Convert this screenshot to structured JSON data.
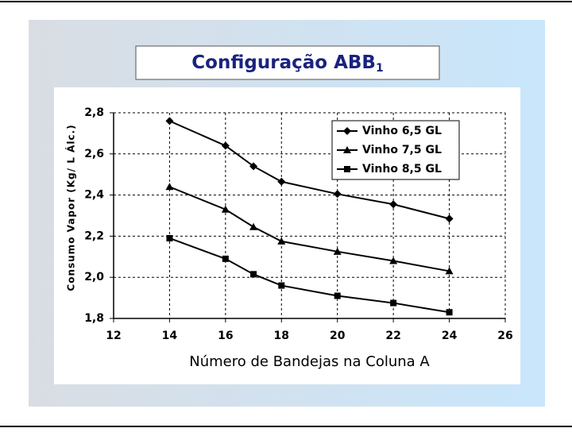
{
  "chart_data": {
    "type": "line",
    "title": "Configuração ABB",
    "title_subscript": "1",
    "x_label": "Número de Bandejas na Coluna A",
    "y_label": "Consumo Vapor (Kg/ L Álc.)",
    "x": [
      14,
      16,
      17,
      18,
      20,
      22,
      24
    ],
    "series": [
      {
        "name": "Vinho 6,5 GL",
        "color": "#000000",
        "marker": "diamond",
        "values": [
          2.76,
          2.64,
          2.54,
          2.465,
          2.405,
          2.355,
          2.285
        ]
      },
      {
        "name": "Vinho 7,5 GL",
        "color": "#000000",
        "marker": "triangle",
        "values": [
          2.44,
          2.33,
          2.245,
          2.175,
          2.125,
          2.08,
          2.03
        ]
      },
      {
        "name": "Vinho 8,5 GL",
        "color": "#000000",
        "marker": "square",
        "values": [
          2.19,
          2.09,
          2.015,
          1.96,
          1.91,
          1.875,
          1.83
        ]
      }
    ],
    "xlim": [
      12,
      26
    ],
    "xticks": [
      12,
      14,
      16,
      18,
      20,
      22,
      24,
      26
    ],
    "ylim": [
      1.8,
      2.8
    ],
    "yticks": [
      {
        "value": 1.8,
        "label": "1,8"
      },
      {
        "value": 2.0,
        "label": "2,0"
      },
      {
        "value": 2.2,
        "label": "2,2"
      },
      {
        "value": 2.4,
        "label": "2,4"
      },
      {
        "value": 2.6,
        "label": "2,6"
      },
      {
        "value": 2.8,
        "label": "2,8"
      }
    ],
    "grid": true,
    "legend": "top-right"
  }
}
